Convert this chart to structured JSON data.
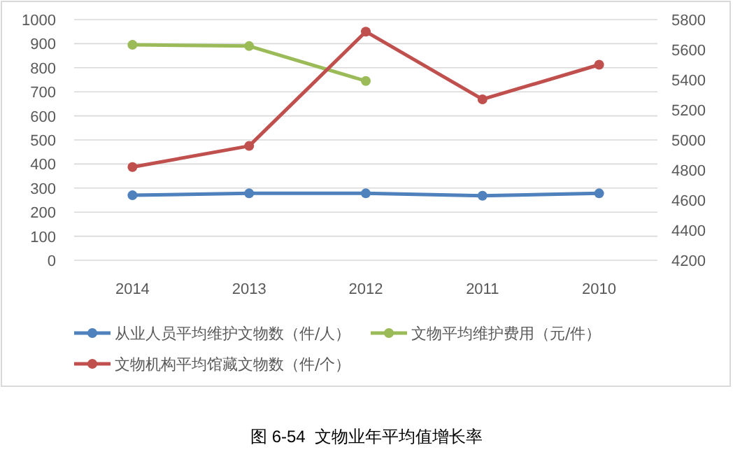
{
  "chart_data": {
    "type": "line",
    "categories": [
      "2014",
      "2013",
      "2012",
      "2011",
      "2010"
    ],
    "series": [
      {
        "name": "从业人员平均维护文物数（件/人）",
        "color": "#4f81bd",
        "values": [
          270,
          278,
          278,
          268,
          278
        ]
      },
      {
        "name": "文物平均维护费用（元/件）",
        "color": "#9bbb59",
        "values": [
          895,
          890,
          745,
          null,
          null
        ]
      },
      {
        "name": "文物机构平均馆藏文物数（件/个）",
        "color": "#c0504d",
        "values": [
          4820,
          4960,
          5720,
          5270,
          5500
        ],
        "axis": "y2"
      }
    ],
    "ylim": [
      0,
      1000
    ],
    "yticks": [
      0,
      100,
      200,
      300,
      400,
      500,
      600,
      700,
      800,
      900,
      1000
    ],
    "y2lim": [
      4200,
      5800
    ],
    "y2ticks": [
      4200,
      4400,
      4600,
      4800,
      5000,
      5200,
      5400,
      5600,
      5800
    ],
    "grid": "y",
    "marker": "circle",
    "line_style": "solid",
    "legend": "bottom",
    "annotations": [
      "图 6-54  文物业年平均值增长率"
    ]
  }
}
